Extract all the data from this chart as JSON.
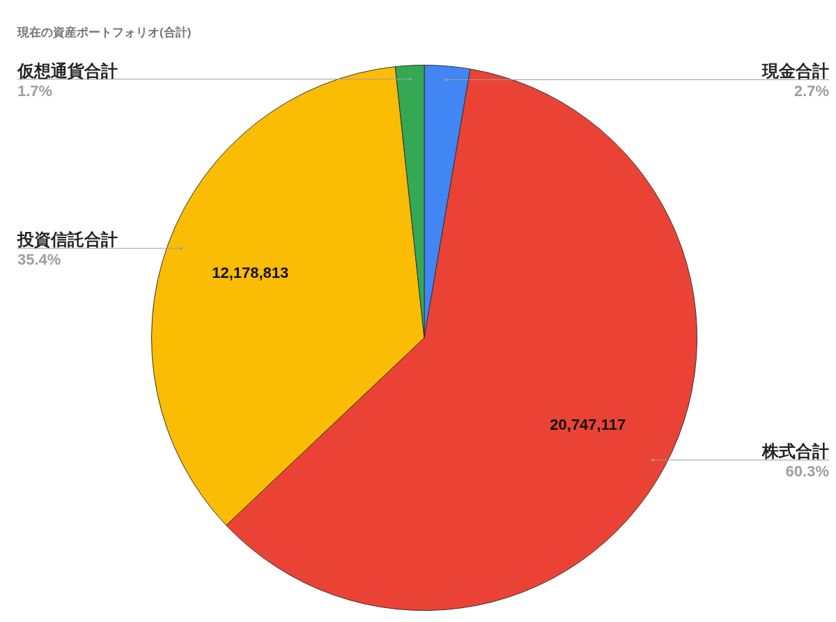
{
  "chart_data": {
    "type": "pie",
    "title": "現在の資産ポートフォリオ(合計)",
    "categories": [
      "現金合計",
      "株式合計",
      "投資信託合計",
      "仮想通貨合計"
    ],
    "values": [
      2.7,
      60.3,
      35.4,
      1.7
    ],
    "colors": [
      "#4285f4",
      "#ea4335",
      "#fbbc04",
      "#34a853"
    ],
    "value_labels": [
      "2.7%",
      "60.3%",
      "35.4%",
      "1.7%"
    ],
    "annotations": [
      {
        "text": "20,747,117",
        "x": "株式合計"
      },
      {
        "text": "12,178,813",
        "x": "投資信託合計"
      }
    ],
    "legend": false
  }
}
